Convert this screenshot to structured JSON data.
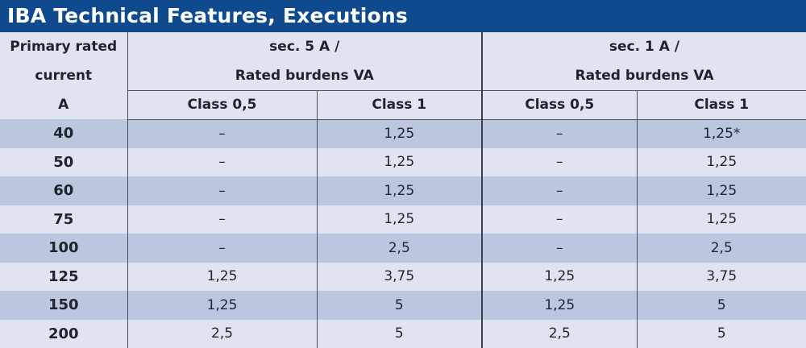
{
  "title": "IBA Technical Features, Executions",
  "header": {
    "primary_line1": "Primary rated",
    "primary_line2": "current",
    "primary_unit": "A",
    "group1_line1": "sec. 5 A /",
    "group1_line2": "Rated burdens VA",
    "group2_line1": "sec. 1 A /",
    "group2_line2": "Rated burdens VA",
    "class_a": "Class 0,5",
    "class_b": "Class 1",
    "class_c": "Class 0,5",
    "class_d": "Class 1"
  },
  "rows": [
    {
      "current": "40",
      "s5_c05": "–",
      "s5_c1": "1,25",
      "s1_c05": "–",
      "s1_c1": "1,25*"
    },
    {
      "current": "50",
      "s5_c05": "–",
      "s5_c1": "1,25",
      "s1_c05": "–",
      "s1_c1": "1,25"
    },
    {
      "current": "60",
      "s5_c05": "–",
      "s5_c1": "1,25",
      "s1_c05": "–",
      "s1_c1": "1,25"
    },
    {
      "current": "75",
      "s5_c05": "–",
      "s5_c1": "1,25",
      "s1_c05": "–",
      "s1_c1": "1,25"
    },
    {
      "current": "100",
      "s5_c05": "–",
      "s5_c1": "2,5",
      "s1_c05": "–",
      "s1_c1": "2,5"
    },
    {
      "current": "125",
      "s5_c05": "1,25",
      "s5_c1": "3,75",
      "s1_c05": "1,25",
      "s1_c1": "3,75"
    },
    {
      "current": "150",
      "s5_c05": "1,25",
      "s5_c1": "5",
      "s1_c05": "1,25",
      "s1_c1": "5"
    },
    {
      "current": "200",
      "s5_c05": "2,5",
      "s5_c1": "5",
      "s1_c05": "2,5",
      "s1_c1": "5"
    }
  ],
  "colors": {
    "title_bg": "#0f4a8e",
    "row_dark": "#bcc6df",
    "row_light": "#dfe4f0"
  }
}
